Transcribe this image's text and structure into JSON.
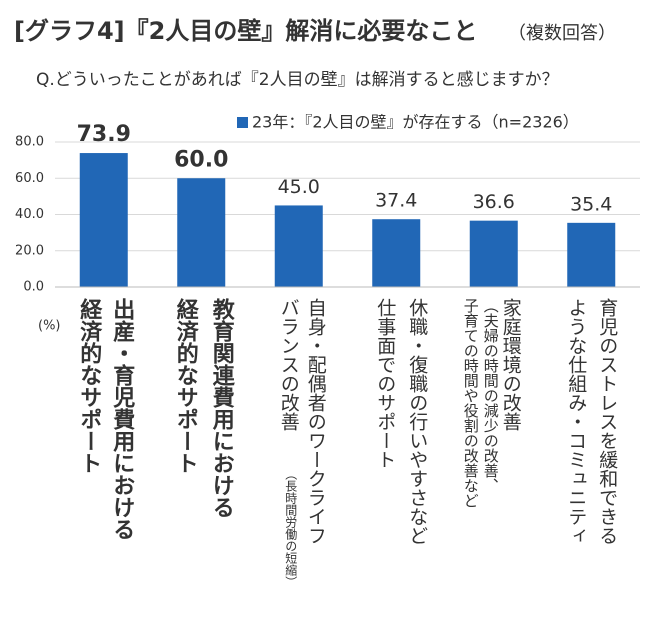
{
  "chart_data": {
    "type": "bar",
    "title": "[グラフ4]『2人目の壁』解消に必要なこと",
    "subtitle": "（複数回答）",
    "question": "Q.どういったことがあれば『2人目の壁』は解消すると感じますか？",
    "unit_label": "(%)",
    "categories": [
      [
        "出産・育児費用における",
        "経済的なサポート"
      ],
      [
        "教育関連費用における",
        "経済的なサポート"
      ],
      [
        "自身・配偶者のワークライフ",
        "バランスの改善",
        "（長時間労働の短縮）"
      ],
      [
        "休職・復職の行いやすさなど",
        "仕事面でのサポート"
      ],
      [
        "家庭環境の改善",
        "（夫婦の時間の減少の改善、",
        "子育ての時間や役割の改善など"
      ],
      [
        "育児のストレスを緩和できる",
        "ような仕組み・コミュニティ"
      ]
    ],
    "series": [
      {
        "name": "23年：『2人目の壁』が存在する（n=2326）",
        "color": "#2167b6",
        "values": [
          73.9,
          60.0,
          45.0,
          37.4,
          36.6,
          35.4
        ],
        "value_labels": [
          "73.9",
          "60.0",
          "45.0",
          "37.4",
          "36.6",
          "35.4"
        ]
      }
    ],
    "ylim": [
      0,
      80
    ],
    "yticks": [
      {
        "value": 0,
        "label": "0.0"
      },
      {
        "value": 20,
        "label": "20.0"
      },
      {
        "value": 40,
        "label": "40.0"
      },
      {
        "value": 60,
        "label": "60.0"
      },
      {
        "value": 80,
        "label": "80.0"
      }
    ],
    "grid": true
  }
}
